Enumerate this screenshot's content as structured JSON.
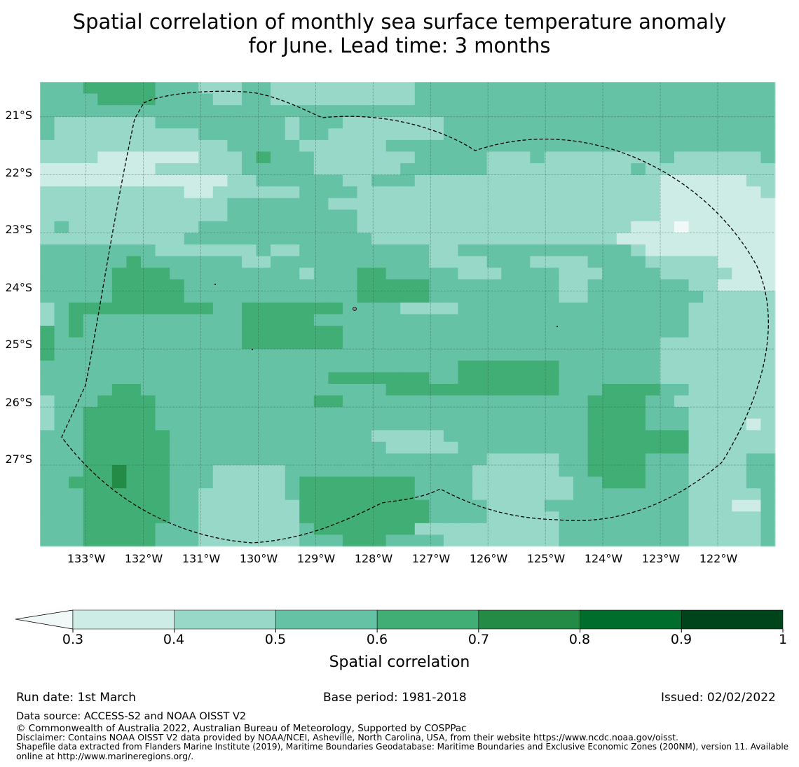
{
  "title": {
    "line1": "Spatial correlation of monthly sea surface temperature anomaly",
    "line2": "for June. Lead time: 3 months"
  },
  "map": {
    "lat_labels": [
      "21°S",
      "22°S",
      "23°S",
      "24°S",
      "25°S",
      "26°S",
      "27°S"
    ],
    "lon_labels": [
      "133°W",
      "132°W",
      "131°W",
      "130°W",
      "129°W",
      "128°W",
      "127°W",
      "126°W",
      "125°W",
      "124°W",
      "123°W",
      "122°W"
    ],
    "lon_range": [
      -133.8,
      -121.0
    ],
    "lat_range": [
      -28.4,
      -20.4
    ],
    "rows": [
      "333444443332223322222222223333333333333333333333333",
      "333344443333223322222222223333333333333333333333333",
      "333333333333333333333333333333333333333333333333333",
      "322222223333333332333222222233333333333333333333333",
      "322222222223333332332222222233333333333333333333333",
      "222222222222233333222222333333333333333333333333333",
      "222211111112223433322222223333322232222222232222223",
      "111111112222223333322222233333322222222223222222222",
      "111111111111122333333223332222222222222222211111122",
      "222222222211222222333322222222222222222222211111112",
      "222222222222233333332222222222222222222222211111111",
      "222222222222233333333322222222222222222222211111111",
      "232222222223333333333322222222222222222221110111111",
      "222222222233333333333332222222222222222211111111111",
      "333333332222222322333333333223333333333332111111111",
      "333333433333332233333333333222233322223333222221111",
      "333334444333333333233344333332223333222333322222111",
      "333334444433333333333344444333333333223333333221111",
      "333334444433333333333344444333333333223333333322222",
      "234444444444334444444333322223333333333333333222222",
      "234333333333334444433333333333333333333333333222222",
      "434333333333334444444333333333333333333333333222222",
      "433333333333334444444333333333333333333333322222222",
      "433333333333333333333333333333333333333333322222222",
      "333333333333333333333333333334444444333333322222222",
      "333333333333333333334444444334444444333333322222222",
      "333334433333333333333333444444444444333444433222222",
      "233344443333333333344333333333333333334444332222222",
      "233444443333333333333333333333333333334444333222222",
      "233444443333333333333333333333333333334444333222212",
      "333444444333333333333332222233333333334444444222222",
      "333444444333333333333333222223333333334444444222222",
      "333444444333333333333333333333322222334444333222233",
      "333445444333222223333333333333222222334444333222233",
      "334445444333222223444444443333222222233444333222233",
      "333444444332222223444444443333222222233333333222223",
      "333444444332222222444444444333322223333333333222113",
      "333444444332222222444444444333322222333333333222223",
      "333444443332222222344444442222222222333333333222223",
      "333444443332222222333444333322222222333333333222223"
    ]
  },
  "colorbar": {
    "levels": [
      "0.3",
      "0.4",
      "0.5",
      "0.6",
      "0.7",
      "0.8",
      "0.9",
      "1"
    ],
    "colors": [
      "#f0f9f8",
      "#cdece6",
      "#98d8c8",
      "#65c2a5",
      "#41ae76",
      "#238b45",
      "#006d2c",
      "#00441b"
    ],
    "label": "Spatial correlation"
  },
  "footer": {
    "run_date": "Run date: 1st March",
    "base_period": "Base period: 1981-2018",
    "issued": "Issued: 02/02/2022",
    "data_source": "Data source: ACCESS-S2 and NOAA OISST V2",
    "copyright": "© Commonwealth of Australia 2022, Australian Bureau of Meteorology, Supported by COSPPac",
    "disclaimer": "Disclaimer: Contains NOAA OISST V2 data provided by NOAA/NCEI, Asheville, North Carolina, USA, from their website https://www.ncdc.noaa.gov/oisst.",
    "shapefile_line1": "Shapefile data extracted from Flanders Marine Institute (2019), Maritime Boundaries Geodatabase: Maritime Boundaries and Exclusive Economic Zones (200NM), version 11. Available",
    "shapefile_line2": "online at http://www.marineregions.org/."
  }
}
